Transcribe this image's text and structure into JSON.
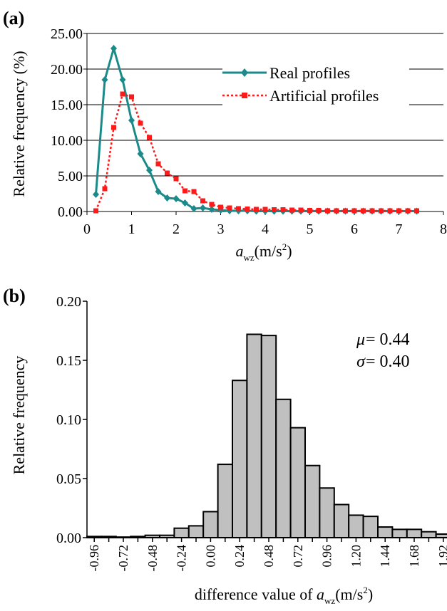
{
  "chart_data": [
    {
      "panel_label": "(a)",
      "type": "line",
      "xlabel": "a",
      "xlabel_sub": "wz",
      "xlabel_unit": "(m/s",
      "xlabel_unit_sup": "2",
      "xlabel_unit_end": ")",
      "ylabel": "Relative frequency (%)",
      "xlim": [
        0,
        8
      ],
      "ylim": [
        0,
        25
      ],
      "x_ticks": [
        "0",
        "1",
        "2",
        "3",
        "4",
        "5",
        "6",
        "7",
        "8"
      ],
      "y_ticks": [
        "0.00",
        "5.00",
        "10.00",
        "15.00",
        "20.00",
        "25.00"
      ],
      "grid": "horizontal",
      "legend_position": "top-right",
      "series": [
        {
          "name": "Real profiles",
          "color": "#1a8a8a",
          "line_style": "solid",
          "marker": "diamond",
          "x": [
            0.2,
            0.4,
            0.6,
            0.8,
            1.0,
            1.2,
            1.4,
            1.6,
            1.8,
            2.0,
            2.2,
            2.4,
            2.6,
            2.8,
            3.0,
            3.2,
            3.4,
            3.6,
            3.8,
            4.0,
            4.2,
            4.4,
            4.6,
            4.8,
            5.0,
            5.2,
            5.4,
            5.6,
            5.8,
            6.0,
            6.2,
            6.4,
            6.6,
            6.8,
            7.0,
            7.2,
            7.4
          ],
          "y": [
            2.4,
            18.5,
            22.9,
            18.5,
            12.8,
            8.1,
            5.8,
            2.8,
            1.9,
            1.8,
            1.2,
            0.4,
            0.5,
            0.3,
            0.2,
            0.1,
            0.1,
            0.1,
            0.05,
            0.05,
            0.05,
            0.05,
            0.05,
            0.05,
            0.05,
            0.05,
            0.05,
            0.05,
            0.05,
            0.05,
            0.05,
            0.05,
            0.05,
            0.05,
            0.05,
            0.05,
            0.05
          ]
        },
        {
          "name": "Artificial profiles",
          "color": "#ff1a1a",
          "line_style": "dotted",
          "marker": "square",
          "x": [
            0.2,
            0.4,
            0.6,
            0.8,
            1.0,
            1.2,
            1.4,
            1.6,
            1.8,
            2.0,
            2.2,
            2.4,
            2.6,
            2.8,
            3.0,
            3.2,
            3.4,
            3.6,
            3.8,
            4.0,
            4.2,
            4.4,
            4.6,
            4.8,
            5.0,
            5.2,
            5.4,
            5.6,
            5.8,
            6.0,
            6.2,
            6.4,
            6.6,
            6.8,
            7.0,
            7.2,
            7.4
          ],
          "y": [
            0.1,
            3.2,
            11.8,
            16.5,
            16.1,
            12.4,
            10.4,
            6.7,
            5.4,
            4.6,
            2.9,
            2.8,
            1.5,
            1.0,
            0.6,
            0.5,
            0.4,
            0.35,
            0.3,
            0.3,
            0.25,
            0.25,
            0.2,
            0.2,
            0.15,
            0.15,
            0.1,
            0.1,
            0.1,
            0.1,
            0.1,
            0.1,
            0.1,
            0.1,
            0.1,
            0.1,
            0.1
          ]
        }
      ]
    },
    {
      "panel_label": "(b)",
      "type": "bar",
      "xlabel": "difference value of ",
      "xlabel_var": "a",
      "xlabel_sub": "wz",
      "xlabel_unit": "(m/s",
      "xlabel_unit_sup": "2",
      "xlabel_unit_end": ")",
      "ylabel": "Relative frequency",
      "ylim": [
        0,
        0.2
      ],
      "y_ticks": [
        "0.00",
        "0.05",
        "0.10",
        "0.15",
        "0.20"
      ],
      "x_ticks": [
        "-0.96",
        "-0.72",
        "-0.48",
        "-0.24",
        "0.00",
        "0.24",
        "0.48",
        "0.72",
        "0.96",
        "1.20",
        "1.44",
        "1.68",
        "1.92"
      ],
      "bar_color": "#c0c0c0",
      "bin_start": -1.02,
      "bin_width": 0.12,
      "values": [
        0.001,
        0.001,
        0.0005,
        0.001,
        0.002,
        0.002,
        0.008,
        0.01,
        0.022,
        0.062,
        0.133,
        0.172,
        0.171,
        0.117,
        0.093,
        0.061,
        0.042,
        0.028,
        0.019,
        0.018,
        0.009,
        0.007,
        0.007,
        0.005,
        0.003,
        0.001,
        0.002
      ],
      "annotations": [
        {
          "symbol": "μ",
          "text": "= 0.44"
        },
        {
          "symbol": "σ",
          "text": "= 0.40"
        }
      ]
    }
  ]
}
